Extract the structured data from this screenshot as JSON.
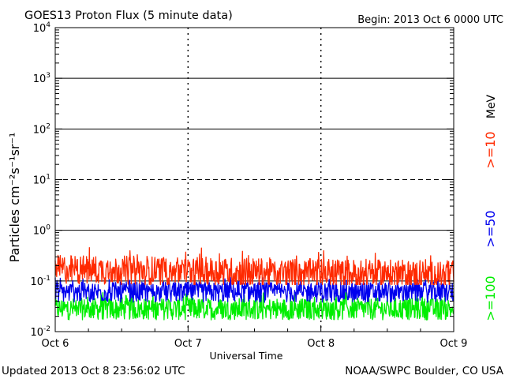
{
  "header": {
    "title": "GOES13 Proton Flux (5 minute data)",
    "begin": "Begin: 2013 Oct 6 0000 UTC"
  },
  "footer": {
    "updated": "Updated 2013 Oct  8 23:56:02 UTC",
    "source": "NOAA/SWPC Boulder, CO USA"
  },
  "chart_data": {
    "type": "line",
    "title": "GOES13 Proton Flux (5 minute data)",
    "xlabel": "Universal Time",
    "ylabel": "Particles cm⁻²s⁻¹sr⁻¹",
    "yscale": "log",
    "ylim": [
      0.01,
      10000
    ],
    "xlim": [
      0,
      72
    ],
    "x_unit": "hours since 2013 Oct 6 0000 UTC",
    "x_ticks": [
      {
        "value": 0,
        "label": "Oct 6"
      },
      {
        "value": 24,
        "label": "Oct 7"
      },
      {
        "value": 48,
        "label": "Oct 8"
      },
      {
        "value": 72,
        "label": "Oct 9"
      }
    ],
    "y_ticks": [
      {
        "value": 0.01,
        "base": "10",
        "exp": "-2"
      },
      {
        "value": 0.1,
        "base": "10",
        "exp": "-1"
      },
      {
        "value": 1,
        "base": "10",
        "exp": "0"
      },
      {
        "value": 10,
        "base": "10",
        "exp": "1"
      },
      {
        "value": 100,
        "base": "10",
        "exp": "2"
      },
      {
        "value": 1000,
        "base": "10",
        "exp": "3"
      },
      {
        "value": 10000,
        "base": "10",
        "exp": "4"
      }
    ],
    "threshold_lines": [
      {
        "value": 10,
        "style": "dashed"
      },
      {
        "value": 0.1,
        "style": "solid"
      }
    ],
    "legend_unit": "MeV",
    "series": [
      {
        "name": ">=10",
        "color": "#ff2a00",
        "min": 0.085,
        "max": 0.5,
        "mean": 0.17
      },
      {
        "name": ">=50",
        "color": "#0000ee",
        "min": 0.035,
        "max": 0.12,
        "mean": 0.06
      },
      {
        "name": ">=100",
        "color": "#00ee00",
        "min": 0.016,
        "max": 0.06,
        "mean": 0.028
      }
    ],
    "sample_interval_minutes": 5
  }
}
